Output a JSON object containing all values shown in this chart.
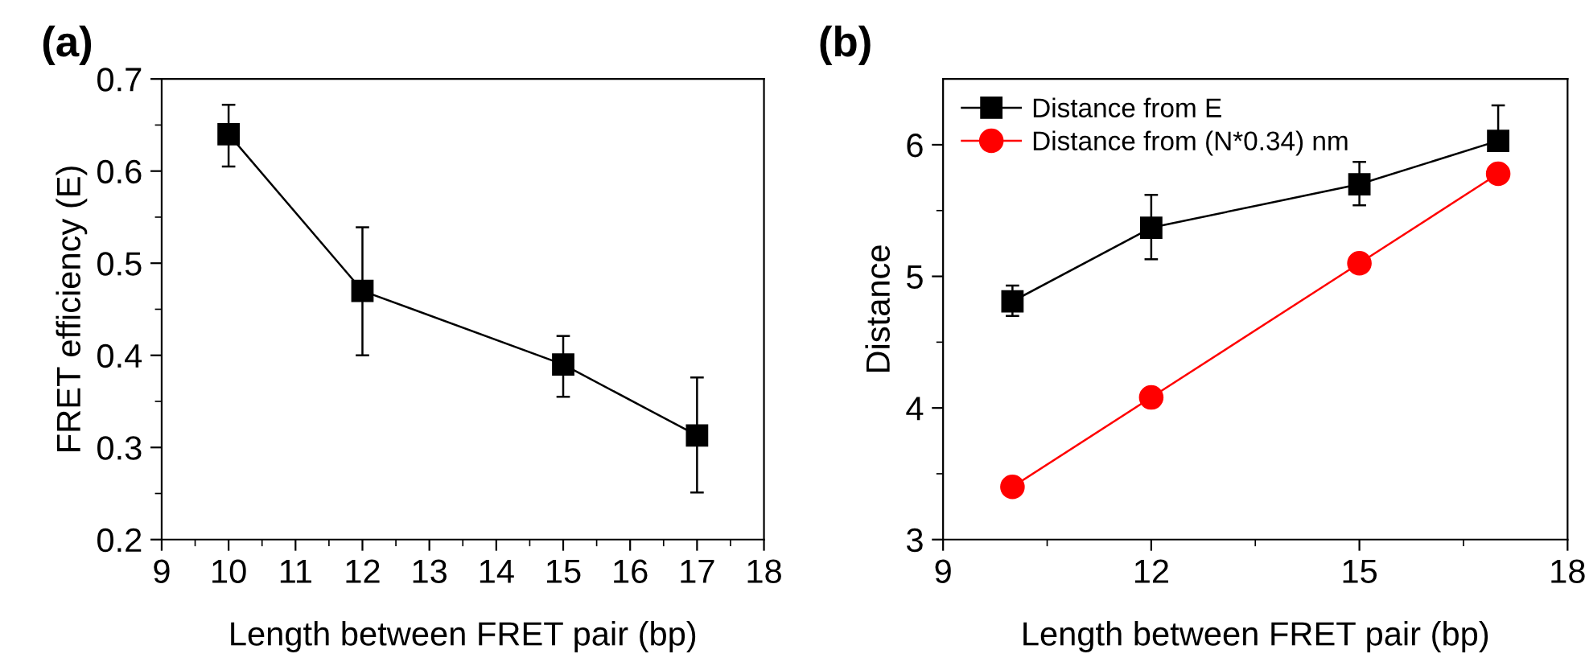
{
  "chart_data": [
    {
      "type": "line",
      "title": "(a)",
      "xlabel": "Length between FRET pair (bp)",
      "ylabel": "FRET efficiency (E)",
      "x": [
        10,
        12,
        15,
        17
      ],
      "marker": "square",
      "line_style": "solid",
      "grid": false,
      "legend": false,
      "series": [
        {
          "color": "#000000",
          "values": [
            0.64,
            0.47,
            0.39,
            0.313
          ],
          "errors": [
            [
              0.605,
              0.672
            ],
            [
              0.4,
              0.539
            ],
            [
              0.355,
              0.421
            ],
            [
              0.251,
              0.376
            ]
          ]
        }
      ],
      "xlim": [
        9,
        18
      ],
      "xticks": [
        9,
        10,
        11,
        12,
        13,
        14,
        15,
        16,
        17,
        18
      ],
      "ylim": [
        0.2,
        0.7
      ],
      "yticks": [
        0.2,
        0.3,
        0.4,
        0.5,
        0.6,
        0.7
      ]
    },
    {
      "type": "line",
      "title": "(b)",
      "xlabel": "Length between FRET pair (bp)",
      "ylabel": "Distance",
      "x": [
        10,
        12,
        15,
        17
      ],
      "line_style": "solid",
      "grid": false,
      "legend": "top left",
      "series": [
        {
          "name": "Distance from E",
          "color": "#000000",
          "marker": "square",
          "values": [
            4.81,
            5.37,
            5.7,
            6.03
          ],
          "errors": [
            [
              4.7,
              4.93
            ],
            [
              5.13,
              5.62
            ],
            [
              5.54,
              5.87
            ],
            [
              6.03,
              6.3
            ]
          ]
        },
        {
          "name": "Distance from (N*0.34) nm",
          "color": "#ff0000",
          "marker": "circle",
          "values": [
            3.4,
            4.08,
            5.1,
            5.78
          ]
        }
      ],
      "xlim": [
        9,
        18
      ],
      "xticks": [
        9,
        12,
        15,
        18
      ],
      "ylim": [
        3,
        6.5
      ],
      "yticks": [
        3,
        4,
        5,
        6
      ]
    }
  ]
}
